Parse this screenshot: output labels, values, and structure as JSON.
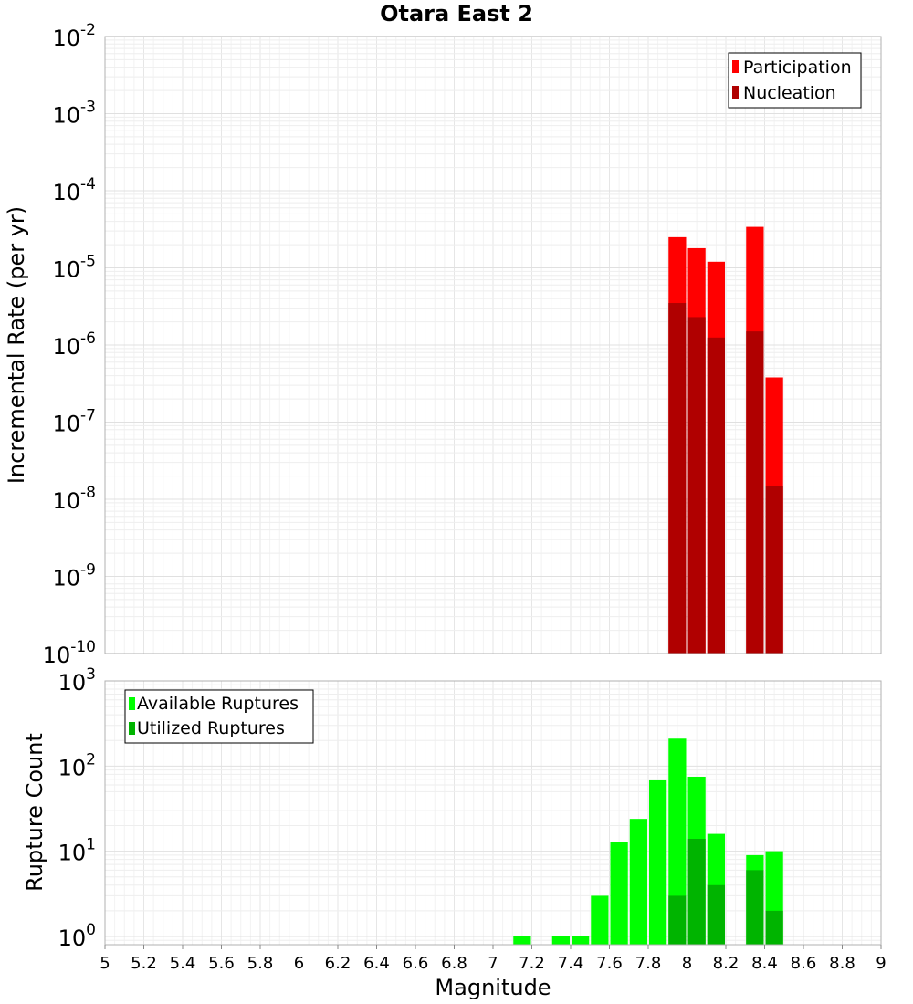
{
  "chart_data": [
    {
      "type": "bar",
      "title": "Otara East 2",
      "xlabel": "",
      "ylabel": "Incremental Rate (per yr)",
      "yscale": "log",
      "ylim": [
        1e-10,
        0.01
      ],
      "xlim": [
        5,
        9
      ],
      "y_tick_exponents": [
        "-10",
        "-9",
        "-8",
        "-7",
        "-6",
        "-5",
        "-4",
        "-3",
        "-2"
      ],
      "grid": true,
      "legend_position": "top-right",
      "x": [
        7.95,
        8.05,
        8.15,
        8.35,
        8.45
      ],
      "series": [
        {
          "name": "Participation",
          "color": "#ff0000",
          "values": [
            2.5e-05,
            1.8e-05,
            1.2e-05,
            3.4e-05,
            3.8e-07
          ]
        },
        {
          "name": "Nucleation",
          "color": "#b00000",
          "values": [
            3.5e-06,
            2.3e-06,
            1.25e-06,
            1.5e-06,
            1.5e-08
          ]
        }
      ]
    },
    {
      "type": "bar",
      "xlabel": "Magnitude",
      "ylabel": "Rupture Count",
      "yscale": "log",
      "ylim": [
        0.8,
        1000
      ],
      "xlim": [
        5,
        9
      ],
      "y_tick_exponents": [
        "0",
        "1",
        "2",
        "3"
      ],
      "x_ticks": [
        "5",
        "5.2",
        "5.4",
        "5.6",
        "5.8",
        "6",
        "6.2",
        "6.4",
        "6.6",
        "6.8",
        "7",
        "7.2",
        "7.4",
        "7.6",
        "7.8",
        "8",
        "8.2",
        "8.4",
        "8.6",
        "8.8",
        "9"
      ],
      "grid": true,
      "legend_position": "top-left",
      "x": [
        7.15,
        7.35,
        7.45,
        7.55,
        7.65,
        7.75,
        7.85,
        7.95,
        8.05,
        8.15,
        8.35,
        8.45
      ],
      "series": [
        {
          "name": "Available Ruptures",
          "color": "#00ff00",
          "values": [
            1,
            1,
            1,
            3,
            13,
            24,
            68,
            210,
            75,
            16,
            9,
            10
          ]
        },
        {
          "name": "Utilized Ruptures",
          "color": "#00b400",
          "values": [
            null,
            null,
            null,
            null,
            null,
            null,
            null,
            3,
            14,
            4,
            6,
            2
          ]
        }
      ]
    }
  ]
}
